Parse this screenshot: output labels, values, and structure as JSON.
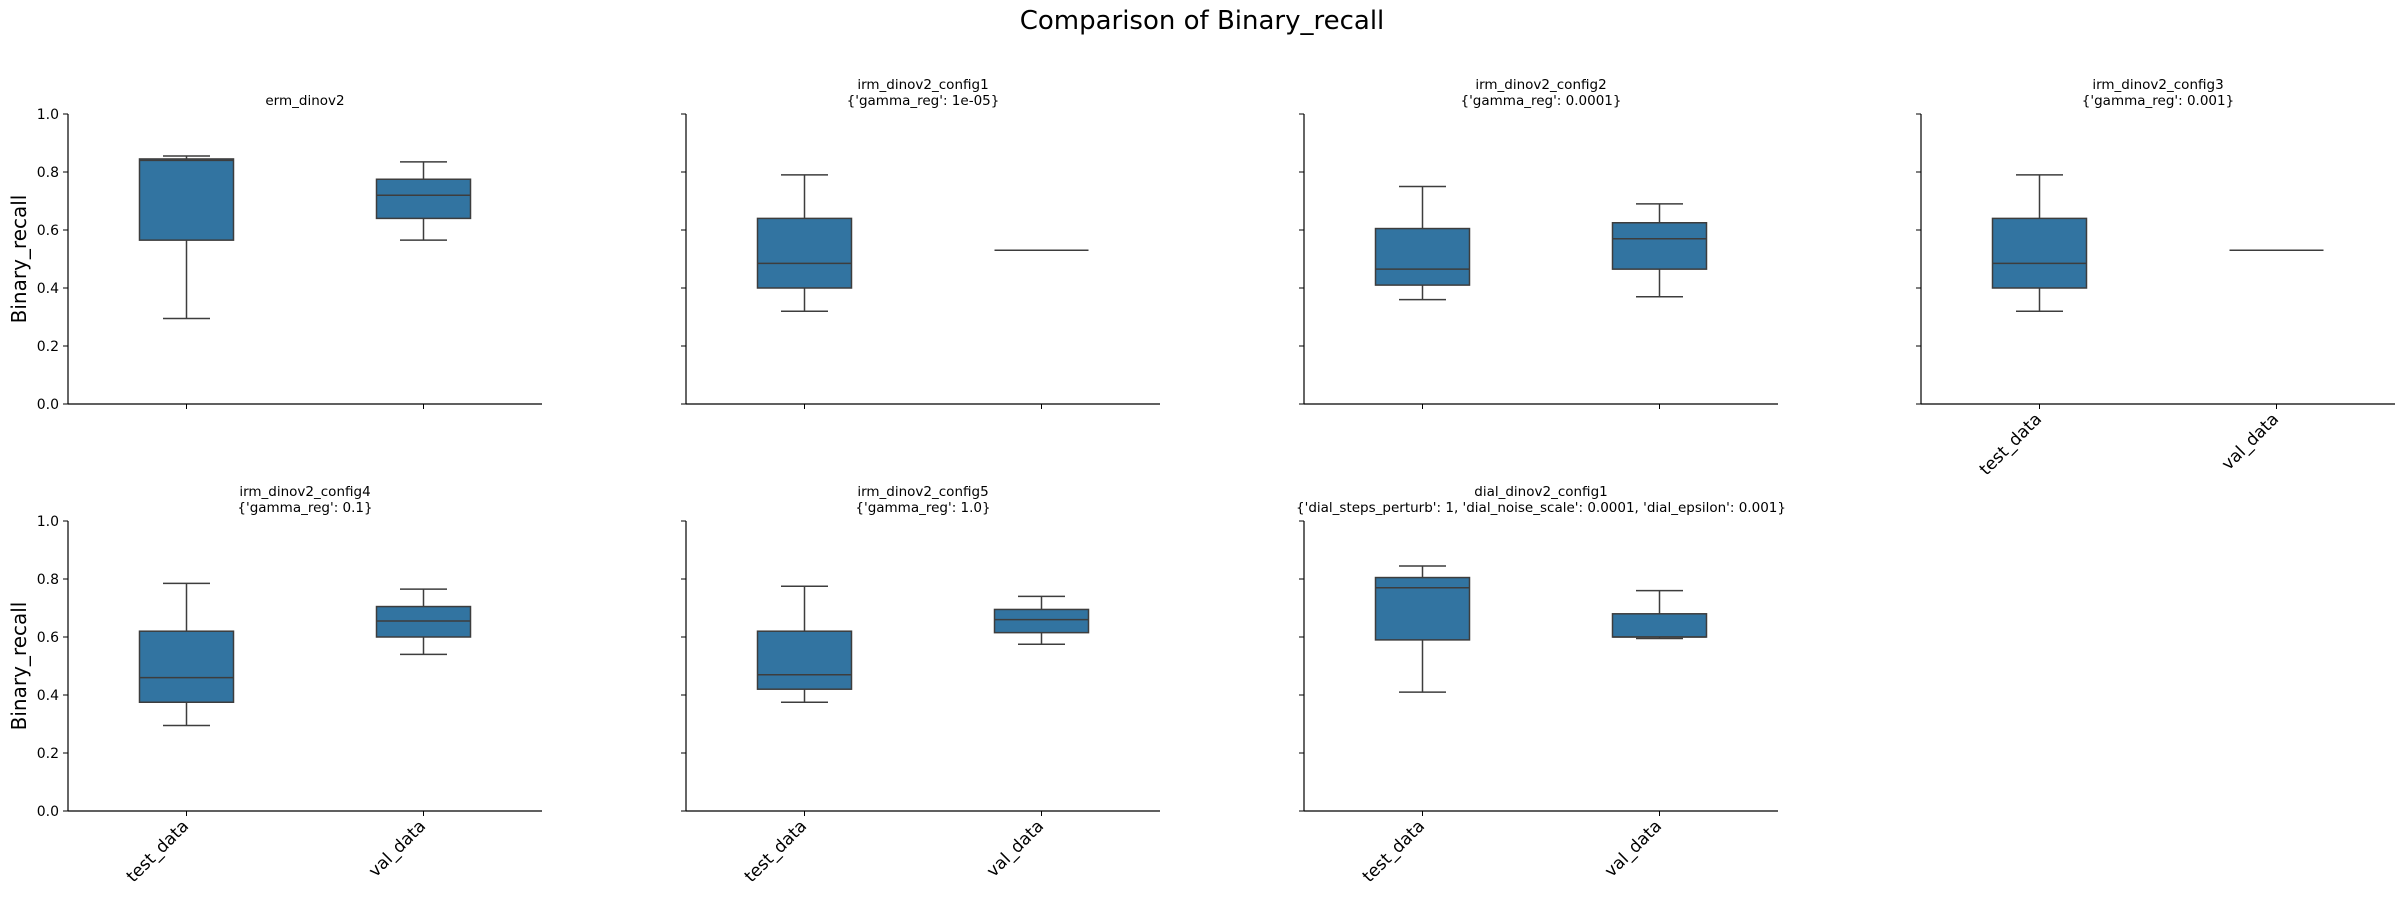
{
  "chart_data": {
    "type": "box",
    "suptitle": "Comparison of Binary_recall",
    "ylabel": "Binary_recall",
    "ylim": [
      0,
      1.0
    ],
    "yticks": [
      "0.0",
      "0.2",
      "0.4",
      "0.6",
      "0.8",
      "1.0"
    ],
    "categories": [
      "test_data",
      "val_data"
    ],
    "box_color": "#3274a1",
    "line_color": "#3d3d3d",
    "panels": [
      {
        "title": [
          "erm_dinov2"
        ],
        "boxes": [
          {
            "whislo": 0.295,
            "q1": 0.565,
            "med": 0.84,
            "q3": 0.845,
            "whishi": 0.855
          },
          {
            "whislo": 0.565,
            "q1": 0.64,
            "med": 0.72,
            "q3": 0.775,
            "whishi": 0.835
          }
        ]
      },
      {
        "title": [
          "irm_dinov2_config1",
          "{'gamma_reg': 1e-05}"
        ],
        "boxes": [
          {
            "whislo": 0.32,
            "q1": 0.4,
            "med": 0.485,
            "q3": 0.64,
            "whishi": 0.79
          },
          {
            "whislo": 0.53,
            "q1": 0.53,
            "med": 0.53,
            "q3": 0.53,
            "whishi": 0.53
          }
        ]
      },
      {
        "title": [
          "irm_dinov2_config2",
          "{'gamma_reg': 0.0001}"
        ],
        "boxes": [
          {
            "whislo": 0.36,
            "q1": 0.41,
            "med": 0.465,
            "q3": 0.605,
            "whishi": 0.75
          },
          {
            "whislo": 0.37,
            "q1": 0.465,
            "med": 0.57,
            "q3": 0.625,
            "whishi": 0.69
          }
        ]
      },
      {
        "title": [
          "irm_dinov2_config3",
          "{'gamma_reg': 0.001}"
        ],
        "boxes": [
          {
            "whislo": 0.32,
            "q1": 0.4,
            "med": 0.485,
            "q3": 0.64,
            "whishi": 0.79
          },
          {
            "whislo": 0.53,
            "q1": 0.53,
            "med": 0.53,
            "q3": 0.53,
            "whishi": 0.53
          }
        ]
      },
      {
        "title": [
          "irm_dinov2_config4",
          "{'gamma_reg': 0.1}"
        ],
        "boxes": [
          {
            "whislo": 0.295,
            "q1": 0.375,
            "med": 0.46,
            "q3": 0.62,
            "whishi": 0.785
          },
          {
            "whislo": 0.54,
            "q1": 0.6,
            "med": 0.655,
            "q3": 0.705,
            "whishi": 0.765
          }
        ]
      },
      {
        "title": [
          "irm_dinov2_config5",
          "{'gamma_reg': 1.0}"
        ],
        "boxes": [
          {
            "whislo": 0.375,
            "q1": 0.42,
            "med": 0.47,
            "q3": 0.62,
            "whishi": 0.775
          },
          {
            "whislo": 0.575,
            "q1": 0.615,
            "med": 0.66,
            "q3": 0.695,
            "whishi": 0.74
          }
        ]
      },
      {
        "title": [
          "dial_dinov2_config1",
          "{'dial_steps_perturb': 1, 'dial_noise_scale': 0.0001, 'dial_epsilon': 0.001}"
        ],
        "boxes": [
          {
            "whislo": 0.41,
            "q1": 0.59,
            "med": 0.77,
            "q3": 0.805,
            "whishi": 0.845
          },
          {
            "whislo": 0.595,
            "q1": 0.6,
            "med": 0.6,
            "q3": 0.68,
            "whishi": 0.76
          }
        ]
      }
    ]
  }
}
